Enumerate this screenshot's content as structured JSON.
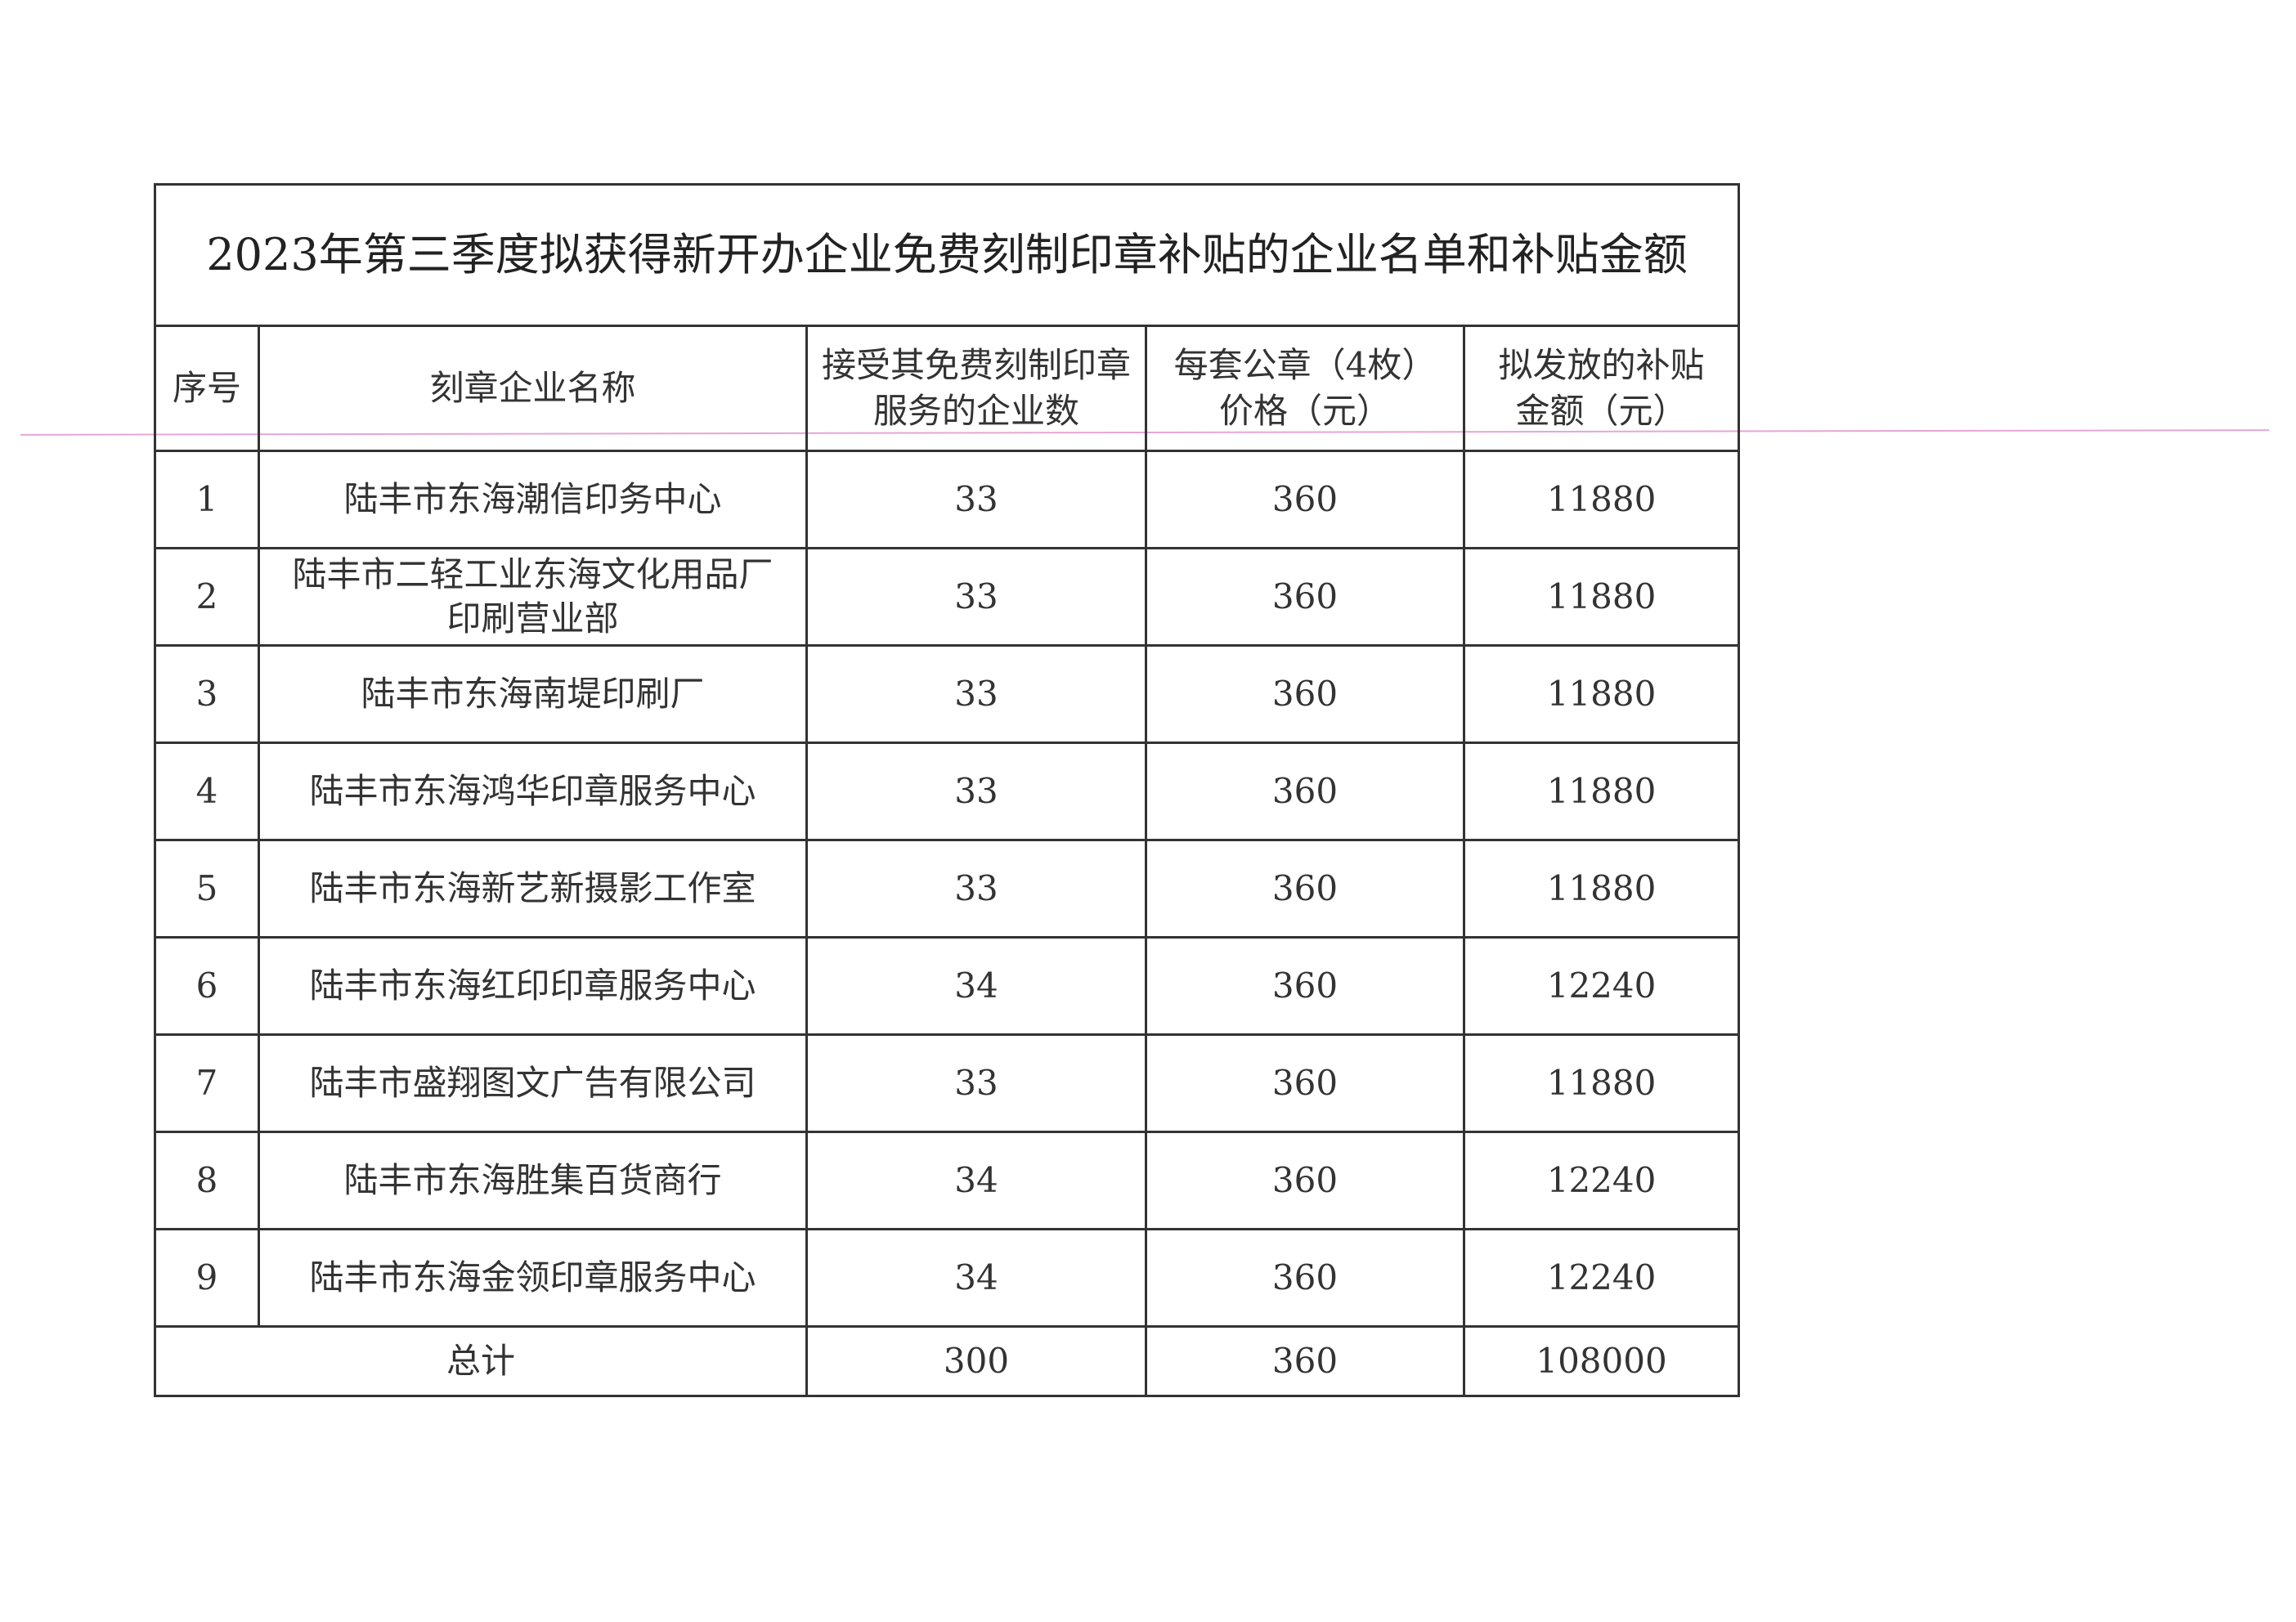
{
  "title": "2023年第三季度拟获得新开办企业免费刻制印章补贴的企业名单和补贴金额",
  "headers": {
    "index": "序号",
    "company": "刻章企业名称",
    "served_count": "接受其免费刻制印章服务的企业数",
    "price": "每套公章（4枚）价格（元）",
    "subsidy": "拟发放的补贴金额（元）"
  },
  "rows": [
    {
      "index": "1",
      "company": "陆丰市东海潮信印务中心",
      "served_count": "33",
      "price": "360",
      "subsidy": "11880"
    },
    {
      "index": "2",
      "company": "陆丰市二轻工业东海文化用品厂印刷营业部",
      "served_count": "33",
      "price": "360",
      "subsidy": "11880"
    },
    {
      "index": "3",
      "company": "陆丰市东海南堤印刷厂",
      "served_count": "33",
      "price": "360",
      "subsidy": "11880"
    },
    {
      "index": "4",
      "company": "陆丰市东海鸿华印章服务中心",
      "served_count": "33",
      "price": "360",
      "subsidy": "11880"
    },
    {
      "index": "5",
      "company": "陆丰市东海新艺新摄影工作室",
      "served_count": "33",
      "price": "360",
      "subsidy": "11880"
    },
    {
      "index": "6",
      "company": "陆丰市东海红印印章服务中心",
      "served_count": "34",
      "price": "360",
      "subsidy": "12240"
    },
    {
      "index": "7",
      "company": "陆丰市盛翔图文广告有限公司",
      "served_count": "33",
      "price": "360",
      "subsidy": "11880"
    },
    {
      "index": "8",
      "company": "陆丰市东海胜集百货商行",
      "served_count": "34",
      "price": "360",
      "subsidy": "12240"
    },
    {
      "index": "9",
      "company": "陆丰市东海金领印章服务中心",
      "served_count": "34",
      "price": "360",
      "subsidy": "12240"
    }
  ],
  "total": {
    "label": "总计",
    "served_count": "300",
    "price": "360",
    "subsidy": "108000"
  }
}
